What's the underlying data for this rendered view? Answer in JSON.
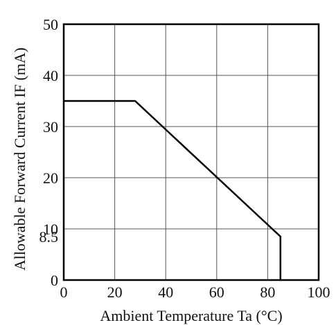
{
  "chart_data": {
    "type": "line",
    "title": "",
    "xlabel": "Ambient Temperature Ta (°C)",
    "ylabel": "Allowable Forward Current IF (mA)",
    "xlim": [
      0,
      100
    ],
    "ylim": [
      0,
      50
    ],
    "x_ticks": [
      0,
      20,
      40,
      60,
      80,
      100
    ],
    "y_ticks": [
      0,
      10,
      20,
      30,
      40,
      50
    ],
    "extra_y_ticks": [
      8.5
    ],
    "grid": true,
    "series": [
      {
        "x": [
          0,
          28,
          85,
          85
        ],
        "y": [
          35,
          35,
          8.5,
          0
        ]
      }
    ],
    "colors": {
      "line": "#000000",
      "grid": "#555555"
    }
  }
}
